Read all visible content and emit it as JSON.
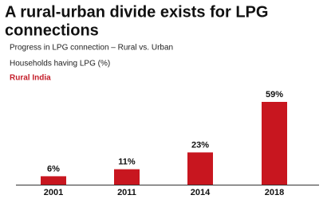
{
  "chart_data": {
    "type": "bar",
    "title": [
      "A rural-urban divide exists for LPG",
      "connections"
    ],
    "subtitle": [
      "Progress in LPG connection – Rural vs. Urban",
      "Households having LPG (%)"
    ],
    "region_label": "Rural India",
    "categories": [
      "2001",
      "2011",
      "2014",
      "2018"
    ],
    "values": [
      6,
      11,
      23,
      59
    ],
    "value_labels": [
      "6%",
      "11%",
      "23%",
      "59%"
    ],
    "color": "#c8161f"
  }
}
